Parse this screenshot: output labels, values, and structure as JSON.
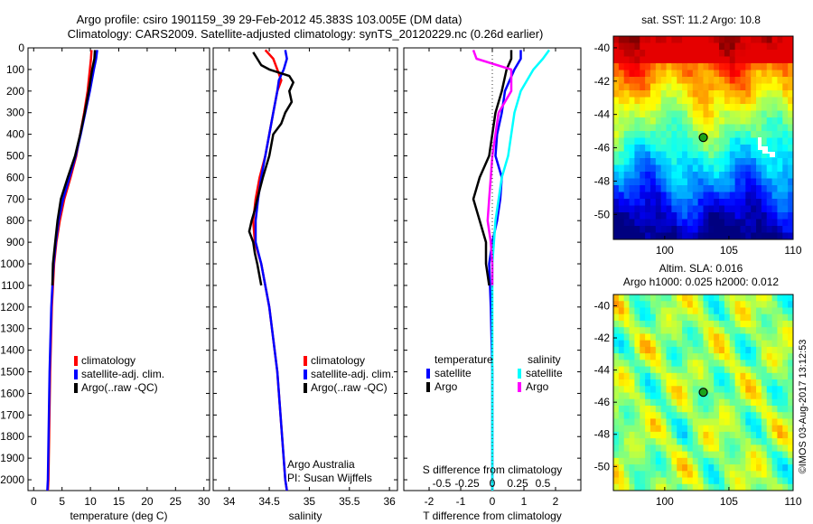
{
  "header": {
    "line1": "Argo profile: csiro 1901159_39 29-Feb-2012 45.383S 103.005E (DM data)",
    "line2": "Climatology: CARS2009. Satellite-adjusted climatology: synTS_20120229.nc (0.26d earlier)"
  },
  "footer": {
    "credit": "©IMOS 03-Aug-2017 13:12:53"
  },
  "colors": {
    "climatology": "#ff0000",
    "satellite": "#0000ff",
    "argo": "#000000",
    "satellite_salinity": "#00ffff",
    "argo_salinity": "#ff00ff"
  },
  "chart_data": [
    {
      "id": "temperature",
      "type": "line",
      "xlabel": "temperature (deg C)",
      "xlim": [
        -1,
        31
      ],
      "xticks": [
        "0",
        "5",
        "10",
        "15",
        "20",
        "25",
        "30"
      ],
      "ylim": [
        0,
        2050
      ],
      "yticks": [
        "0",
        "100",
        "200",
        "300",
        "400",
        "500",
        "600",
        "700",
        "800",
        "900",
        "1000",
        "1100",
        "1200",
        "1300",
        "1400",
        "1500",
        "1600",
        "1700",
        "1800",
        "1900",
        "2000"
      ],
      "legend": [
        "climatology",
        "satellite-adj. clim.",
        "Argo(..raw -QC)"
      ],
      "series": [
        {
          "name": "climatology",
          "color": "#ff0000",
          "depth": [
            10,
            50,
            100,
            200,
            300,
            400,
            500,
            600,
            700,
            800,
            900,
            1000,
            1200,
            1500,
            2000,
            2050
          ],
          "values": [
            10.2,
            10.1,
            9.9,
            9.5,
            8.9,
            8.2,
            7.5,
            6.5,
            5.4,
            4.6,
            4.0,
            3.6,
            3.2,
            2.9,
            2.6,
            2.5
          ]
        },
        {
          "name": "satellite-adj. clim.",
          "color": "#0000ff",
          "depth": [
            10,
            50,
            100,
            200,
            300,
            400,
            500,
            600,
            700,
            800,
            900,
            1000,
            1200,
            1500,
            2000,
            2050
          ],
          "values": [
            11.2,
            11.0,
            10.6,
            9.9,
            9.1,
            8.3,
            7.4,
            6.3,
            5.2,
            4.4,
            3.9,
            3.5,
            3.1,
            2.8,
            2.5,
            2.4
          ]
        },
        {
          "name": "Argo(..raw -QC)",
          "color": "#000000",
          "depth": [
            10,
            50,
            100,
            200,
            300,
            400,
            500,
            600,
            700,
            800,
            900,
            1000,
            1100
          ],
          "values": [
            10.8,
            10.7,
            10.3,
            9.7,
            9.0,
            8.2,
            7.3,
            6.0,
            4.8,
            4.2,
            3.8,
            3.4,
            3.3
          ]
        }
      ]
    },
    {
      "id": "salinity",
      "type": "line",
      "xlabel": "salinity",
      "xlim": [
        33.8,
        36.1
      ],
      "xticks": [
        "34",
        "34.5",
        "35",
        "35.5",
        "36"
      ],
      "ylim": [
        0,
        2050
      ],
      "legend": [
        "climatology",
        "satellite-adj. clim.",
        "Argo(..raw -QC)"
      ],
      "series": [
        {
          "name": "climatology",
          "color": "#ff0000",
          "depth": [
            10,
            50,
            100,
            150,
            200,
            300,
            400,
            500,
            600,
            700,
            800,
            900,
            1000,
            1200,
            1500,
            2000,
            2050
          ],
          "values": [
            34.45,
            34.55,
            34.6,
            34.65,
            34.6,
            34.55,
            34.5,
            34.45,
            34.38,
            34.33,
            34.3,
            34.32,
            34.4,
            34.5,
            34.6,
            34.7,
            34.72
          ]
        },
        {
          "name": "satellite-adj. clim.",
          "color": "#0000ff",
          "depth": [
            10,
            50,
            100,
            150,
            200,
            300,
            400,
            500,
            600,
            700,
            800,
            900,
            1000,
            1200,
            1500,
            2000,
            2050
          ],
          "values": [
            34.7,
            34.72,
            34.68,
            34.62,
            34.6,
            34.55,
            34.5,
            34.45,
            34.4,
            34.36,
            34.33,
            34.33,
            34.4,
            34.5,
            34.6,
            34.7,
            34.72
          ]
        },
        {
          "name": "Argo(..raw -QC)",
          "color": "#000000",
          "depth": [
            20,
            50,
            80,
            100,
            130,
            160,
            200,
            250,
            300,
            350,
            400,
            500,
            600,
            700,
            750,
            800,
            850,
            900,
            950,
            1000,
            1100
          ],
          "values": [
            34.3,
            34.35,
            34.4,
            34.5,
            34.75,
            34.8,
            34.75,
            34.78,
            34.7,
            34.65,
            34.55,
            34.5,
            34.42,
            34.35,
            34.32,
            34.28,
            34.25,
            34.3,
            34.32,
            34.35,
            34.4
          ]
        }
      ],
      "annotation": [
        "Argo Australia",
        "PI: Susan Wijffels"
      ]
    },
    {
      "id": "differences",
      "type": "line",
      "xlabel": "T difference from climatology",
      "xlabel_top": "S difference from climatology",
      "xlim": [
        -2.8,
        2.8
      ],
      "xticks": [
        "-2",
        "-1",
        "0",
        "1",
        "2"
      ],
      "xticks_top": [
        "-0.5",
        "-0.25",
        "0",
        "0.25",
        "0.5"
      ],
      "ylim": [
        0,
        2050
      ],
      "legend": {
        "temperature_title": "temperature",
        "salinity_title": "salinity",
        "temperature": [
          "satellite",
          "Argo"
        ],
        "salinity": [
          "satellite",
          "Argo"
        ]
      },
      "series": [
        {
          "name": "temperature satellite",
          "color": "#0000ff",
          "depth": [
            10,
            50,
            100,
            200,
            300,
            400,
            500,
            600,
            700,
            800,
            900,
            1000,
            1200,
            1500,
            2000,
            2050
          ],
          "values": [
            0.9,
            0.9,
            0.7,
            0.4,
            0.3,
            0.15,
            0.1,
            0.3,
            0.25,
            0.15,
            0.0,
            -0.1,
            -0.05,
            0.0,
            0.0,
            0.0
          ]
        },
        {
          "name": "temperature Argo",
          "color": "#000000",
          "depth": [
            10,
            50,
            100,
            200,
            300,
            400,
            500,
            600,
            700,
            800,
            900,
            1000,
            1100
          ],
          "values": [
            0.6,
            0.6,
            0.45,
            0.3,
            0.1,
            0.0,
            -0.1,
            -0.4,
            -0.6,
            -0.4,
            -0.2,
            -0.2,
            -0.1
          ]
        },
        {
          "name": "salinity satellite",
          "color": "#00ffff",
          "depth": [
            10,
            50,
            100,
            200,
            300,
            400,
            500,
            600,
            700,
            800,
            900,
            1000,
            1200,
            1500,
            2000,
            2050
          ],
          "values": [
            1.8,
            1.6,
            1.3,
            0.9,
            0.7,
            0.6,
            0.5,
            0.3,
            0.2,
            0.1,
            0.05,
            0.0,
            0.0,
            0.0,
            0.0,
            0.0
          ]
        },
        {
          "name": "salinity Argo",
          "color": "#ff00ff",
          "depth": [
            10,
            50,
            100,
            200,
            300,
            400,
            500,
            600,
            700,
            800,
            900,
            1000,
            1100
          ],
          "values": [
            -0.6,
            -0.5,
            0.6,
            0.6,
            0.2,
            0.1,
            0.0,
            -0.05,
            -0.1,
            -0.15,
            -0.05,
            0.0,
            0.0
          ]
        }
      ]
    },
    {
      "id": "sst-map",
      "type": "heatmap",
      "title": "sat. SST: 11.2 Argo: 10.8",
      "xlim": [
        96,
        110
      ],
      "ylim": [
        -51.5,
        -39.3
      ],
      "xticks": [
        "100",
        "105",
        "110"
      ],
      "yticks": [
        "-40",
        "-42",
        "-44",
        "-46",
        "-48",
        "-50"
      ],
      "marker": {
        "lon": 103.005,
        "lat": -45.383
      }
    },
    {
      "id": "sla-map",
      "type": "heatmap",
      "title_line1": "Altim. SLA: 0.016",
      "title_line2": "Argo h1000: 0.025 h2000: 0.012",
      "xlim": [
        96,
        110
      ],
      "ylim": [
        -51.5,
        -39.3
      ],
      "xticks": [
        "100",
        "105",
        "110"
      ],
      "yticks": [
        "-40",
        "-42",
        "-44",
        "-46",
        "-48",
        "-50"
      ],
      "marker": {
        "lon": 103.005,
        "lat": -45.383
      }
    }
  ]
}
